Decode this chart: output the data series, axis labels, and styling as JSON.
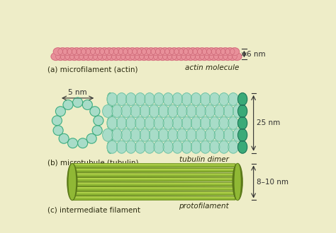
{
  "background_color": "#eeedc8",
  "section_a_label": "(a) microfilament (actin)",
  "section_b_label": "(b) microtubule (tubulin)",
  "section_c_label": "(c) intermediate filament",
  "actin_color": "#e8909a",
  "actin_color_dark": "#c86070",
  "actin_label": "actin molecule",
  "actin_dim_label": "6 nm",
  "tubulin_color_light": "#a8dcc8",
  "tubulin_color_dark": "#3aaa78",
  "tubulin_label": "tubulin dimer",
  "tubulin_dim_label": "25 nm",
  "microtubule_dim_label": "5 nm",
  "filament_color_main": "#90b835",
  "filament_color_dark": "#5a7818",
  "filament_color_light": "#b8d850",
  "filament_label": "protofilament",
  "filament_dim_label": "8–10 nm",
  "label_color": "#2a2a10",
  "dim_color": "#303030",
  "font_size_label": 7.5,
  "font_size_dim": 7.5,
  "font_size_section": 7.5
}
